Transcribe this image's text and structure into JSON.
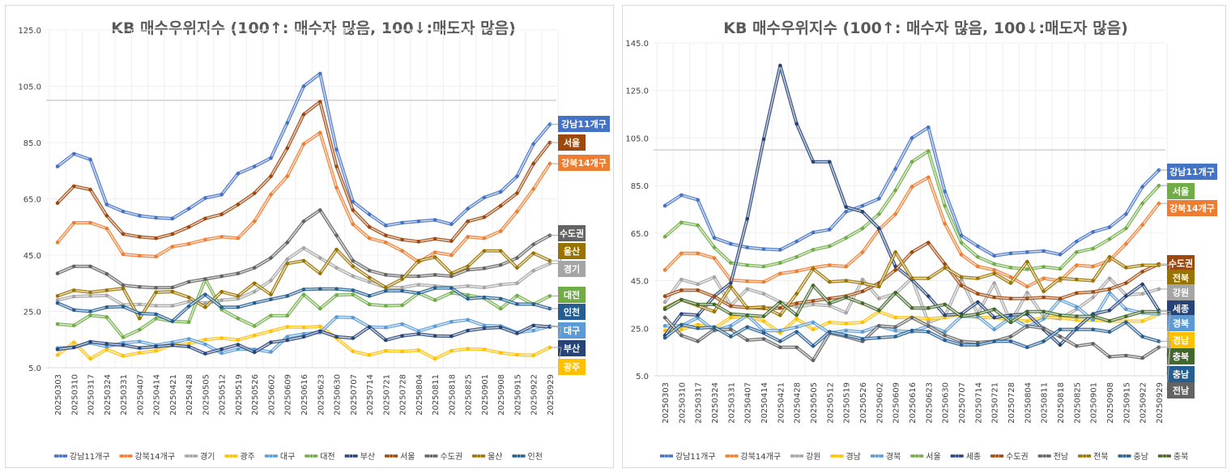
{
  "chart_data": [
    {
      "type": "line",
      "title": "KB 매수우위지수 (100↑: 매수자 많음, 100↓:매도자 많음)",
      "xlabel": "",
      "ylabel": "",
      "ylim": [
        5,
        125
      ],
      "yticks": [
        "5.0",
        "25.0",
        "45.0",
        "65.0",
        "85.0",
        "105.0",
        "125.0"
      ],
      "reference_line": 100,
      "grid": true,
      "legend_position": "bottom",
      "x": [
        "20250303",
        "20250310",
        "20250317",
        "20250324",
        "20250331",
        "20250407",
        "20250414",
        "20250421",
        "20250428",
        "20250505",
        "20250512",
        "20250519",
        "20250526",
        "20250602",
        "20250609",
        "20250616",
        "20250623",
        "20250630",
        "20250707",
        "20250714",
        "20250721",
        "20250728",
        "20250804",
        "20250811",
        "20250818",
        "20250825",
        "20250901",
        "20250908",
        "20250915",
        "20250922",
        "20250929"
      ],
      "series": [
        {
          "name": "강남11개구",
          "color": "#4472C4",
          "values": [
            76.5,
            81,
            79,
            63,
            60.5,
            59,
            58.3,
            58,
            61.5,
            65.3,
            66.5,
            74,
            76.5,
            79.5,
            92,
            105,
            109.5,
            82.5,
            64,
            59.5,
            55.5,
            56.5,
            57,
            57.5,
            56,
            61.5,
            65.5,
            67.5,
            73,
            84.5,
            91.5
          ]
        },
        {
          "name": "강북14개구",
          "color": "#ED7D31",
          "values": [
            49.5,
            56.5,
            56.5,
            54.5,
            45.3,
            44.8,
            44.5,
            48,
            49,
            50.5,
            51.5,
            51,
            57,
            66.5,
            73,
            84.5,
            88.5,
            69,
            56,
            51,
            49.5,
            46.5,
            42.5,
            46,
            45,
            51.5,
            51,
            53.5,
            60.5,
            68.5,
            77.5
          ]
        },
        {
          "name": "경기",
          "color": "#A5A5A5",
          "values": [
            29,
            30.3,
            30.5,
            30.7,
            27.3,
            27.5,
            27,
            27,
            28.5,
            28,
            29,
            29.5,
            32,
            36,
            43.5,
            47.5,
            44,
            40.5,
            37.5,
            35.5,
            33.5,
            33.5,
            34.5,
            34,
            33.5,
            34,
            33.5,
            34.5,
            35,
            39.5,
            42
          ]
        },
        {
          "name": "광주",
          "color": "#FFC000",
          "values": [
            9.5,
            14,
            8.2,
            11.5,
            9.2,
            10.3,
            11,
            13.2,
            13.5,
            15,
            15.5,
            14.9,
            16.5,
            18,
            19.5,
            19.3,
            19.7,
            15.5,
            10.8,
            9.5,
            11,
            10.8,
            11.2,
            8.2,
            11,
            11.7,
            11.5,
            10.3,
            9.6,
            9.4,
            12.2
          ]
        },
        {
          "name": "대구",
          "color": "#5B9BD5",
          "values": [
            12,
            12.3,
            13.8,
            12.5,
            13.8,
            14.3,
            13,
            14,
            15.2,
            13.3,
            10.2,
            11.6,
            11.5,
            10.6,
            16,
            17,
            17.5,
            23,
            22.8,
            19.5,
            19.3,
            20.5,
            18,
            19.7,
            21.3,
            22,
            20,
            19.8,
            17.5,
            18.2,
            19.8
          ]
        },
        {
          "name": "대전",
          "color": "#70AD47",
          "values": [
            20.5,
            20,
            23.6,
            23,
            15.8,
            18.5,
            22.5,
            21.5,
            21.2,
            36.5,
            25.7,
            22.5,
            19.8,
            23.5,
            23.5,
            31,
            26,
            30.8,
            31,
            27.5,
            27,
            27.2,
            31.5,
            29,
            31.6,
            30.8,
            29.7,
            26,
            30.6,
            27.5,
            30.5
          ]
        },
        {
          "name": "부산",
          "color": "#264478",
          "values": [
            11.5,
            12.2,
            14.2,
            13.5,
            13,
            12,
            12.5,
            13,
            12.5,
            10,
            11.6,
            13.2,
            10.5,
            14,
            14.8,
            16,
            18,
            16,
            15.5,
            19.5,
            14.8,
            16.3,
            17,
            16.3,
            16.2,
            18.2,
            19,
            19.3,
            17.2,
            20,
            19.5
          ]
        },
        {
          "name": "서울",
          "color": "#9E480E",
          "values": [
            63.5,
            69.5,
            68.3,
            59,
            52.5,
            51.5,
            51,
            52.5,
            55,
            58,
            59.5,
            63,
            67,
            73,
            83,
            95,
            99.5,
            76.5,
            61,
            55,
            52,
            50.5,
            49.8,
            50.8,
            50,
            57,
            58.5,
            62.5,
            67,
            77.5,
            85
          ]
        },
        {
          "name": "수도권",
          "color": "#636363",
          "values": [
            38.5,
            41,
            41,
            38.3,
            34.3,
            33.7,
            33.4,
            33.5,
            35.5,
            36.5,
            37.5,
            38.5,
            40.5,
            44,
            49.5,
            57,
            61,
            52,
            43,
            39.5,
            38,
            37.5,
            37.5,
            38,
            37.5,
            39.8,
            40.3,
            41.5,
            44,
            48.8,
            52
          ]
        },
        {
          "name": "울산",
          "color": "#997300",
          "values": [
            30.5,
            32.5,
            31.8,
            32.5,
            33.2,
            22.5,
            31.8,
            32,
            30,
            26.5,
            32,
            30.5,
            35,
            31,
            42,
            43,
            38.5,
            47,
            41,
            37,
            33.5,
            36.5,
            43,
            44.3,
            38.5,
            41,
            46.5,
            46.5,
            40.5,
            45.7,
            43
          ]
        },
        {
          "name": "인천",
          "color": "#255E91",
          "values": [
            28,
            25.5,
            25,
            26.5,
            26.7,
            24.3,
            24,
            21.5,
            26.8,
            31,
            26.5,
            26.5,
            28,
            29.3,
            30.5,
            32.8,
            33,
            33,
            32.5,
            30.5,
            32.3,
            32.3,
            31.5,
            33.3,
            33.3,
            29.5,
            30,
            29.5,
            27.6,
            27.6,
            26
          ]
        }
      ],
      "end_labels": [
        "강남11개구",
        "서울",
        "강북14개구",
        "수도권",
        "울산",
        "경기",
        "대전",
        "인천",
        "대구",
        "부산",
        "광주"
      ]
    },
    {
      "type": "line",
      "title": "KB 매수우위지수 (100↑: 매수자 많음, 100↓:매도자 많음)",
      "xlabel": "",
      "ylabel": "",
      "ylim": [
        5,
        145
      ],
      "yticks": [
        "5.0",
        "25.0",
        "45.0",
        "65.0",
        "85.0",
        "105.0",
        "125.0",
        "145.0"
      ],
      "reference_line": 100,
      "grid": true,
      "legend_position": "bottom",
      "x": [
        "20250303",
        "20250310",
        "20250317",
        "20250324",
        "20250331",
        "20250407",
        "20250414",
        "20250421",
        "20250428",
        "20250505",
        "20250512",
        "20250519",
        "20250526",
        "20250602",
        "20250609",
        "20250616",
        "20250623",
        "20250630",
        "20250707",
        "20250714",
        "20250721",
        "20250728",
        "20250804",
        "20250811",
        "20250818",
        "20250825",
        "20250901",
        "20250908",
        "20250915",
        "20250922",
        "20250929"
      ],
      "series": [
        {
          "name": "강남11개구",
          "color": "#4472C4",
          "values": [
            76.5,
            81,
            79,
            63,
            60.5,
            59,
            58.3,
            58,
            61.5,
            65.3,
            66.5,
            74,
            76.5,
            79.5,
            92,
            105,
            109.5,
            82.5,
            64,
            59.5,
            55.5,
            56.5,
            57,
            57.5,
            56,
            61.5,
            65.5,
            67.5,
            73,
            84.5,
            91.5
          ]
        },
        {
          "name": "강북14개구",
          "color": "#ED7D31",
          "values": [
            49.5,
            56.5,
            56.5,
            54.5,
            45.3,
            44.8,
            44.5,
            48,
            49,
            50.5,
            51.5,
            51,
            57,
            66.5,
            73,
            84.5,
            88.5,
            69,
            56,
            51,
            49.5,
            46.5,
            42.5,
            46,
            45,
            51.5,
            51,
            53.5,
            60.5,
            68.5,
            77.5
          ]
        },
        {
          "name": "강원",
          "color": "#A5A5A5",
          "values": [
            36,
            45.5,
            43.5,
            46.5,
            34.5,
            41.5,
            39.5,
            36,
            34,
            35,
            34.5,
            31.5,
            45.5,
            37.5,
            39.5,
            46,
            27.5,
            30,
            45.5,
            31,
            44,
            27.5,
            40,
            30,
            29,
            33,
            38,
            46,
            39,
            39.5,
            41.5
          ]
        },
        {
          "name": "경남",
          "color": "#FFC000",
          "values": [
            24,
            24.5,
            26.5,
            25,
            29.5,
            30,
            28,
            23,
            29,
            24.5,
            27.5,
            27,
            27.5,
            32,
            29.5,
            29.5,
            29,
            29.5,
            31,
            29.5,
            29.5,
            28.5,
            28,
            29.5,
            29.5,
            28.5,
            28.5,
            28,
            28,
            28,
            31
          ]
        },
        {
          "name": "경북",
          "color": "#5B9BD5",
          "values": [
            26,
            26,
            29.5,
            24,
            26,
            30.5,
            24,
            24,
            25.5,
            27.5,
            23,
            24,
            23.5,
            26,
            24,
            23.5,
            26,
            23.5,
            30,
            30,
            24.5,
            29.5,
            25.5,
            29,
            37,
            34,
            28.5,
            40,
            33,
            31.5,
            31
          ]
        },
        {
          "name": "서울",
          "color": "#70AD47",
          "values": [
            63.5,
            69.5,
            68.3,
            59,
            52.5,
            51.5,
            51,
            52.5,
            55,
            58,
            59.5,
            63,
            67,
            73,
            83,
            95,
            99.5,
            76.5,
            61,
            55,
            52,
            50.5,
            49.8,
            50.8,
            50,
            57,
            58.5,
            62.5,
            67,
            77.5,
            85
          ]
        },
        {
          "name": "세종",
          "color": "#264478",
          "values": [
            22,
            31,
            30.5,
            38.5,
            44,
            71,
            104.5,
            135.5,
            111,
            95,
            95,
            76,
            74,
            67,
            51,
            45.5,
            38.5,
            30.5,
            31,
            36,
            29.5,
            30.5,
            31,
            24.5,
            18,
            25,
            31,
            32.5,
            38.5,
            43.5,
            32.5
          ]
        },
        {
          "name": "수도권",
          "color": "#9E480E",
          "values": [
            38.5,
            41,
            41,
            38.3,
            34.3,
            33.7,
            33.4,
            33.5,
            35.5,
            36.5,
            37.5,
            38.5,
            40.5,
            44,
            49.5,
            57,
            61,
            52,
            43,
            39.5,
            38,
            37.5,
            37.5,
            38,
            37.5,
            39.8,
            40.3,
            41.5,
            44,
            48.8,
            52
          ]
        },
        {
          "name": "전남",
          "color": "#636363",
          "values": [
            29.5,
            22,
            19.5,
            24.5,
            24.5,
            20,
            20.5,
            17,
            17,
            11.5,
            23,
            21.5,
            19.5,
            26,
            25.5,
            29.5,
            26,
            22,
            19.5,
            19,
            19.5,
            21.5,
            26,
            25,
            21.5,
            17.5,
            18.5,
            13,
            13.5,
            12.5,
            17
          ]
        },
        {
          "name": "전북",
          "color": "#997300",
          "values": [
            33.5,
            37,
            34.5,
            32,
            42.5,
            33.5,
            34,
            30.5,
            39.5,
            50,
            44.5,
            45,
            44,
            42.5,
            57,
            46,
            46,
            50.5,
            46.5,
            46,
            48,
            44,
            53,
            40.5,
            46,
            45.5,
            45,
            55,
            50.5,
            51.5,
            51.5
          ]
        },
        {
          "name": "충남",
          "color": "#255E91",
          "values": [
            21,
            26.5,
            25,
            25.5,
            21.5,
            25.5,
            23,
            19.5,
            23.5,
            17.5,
            23.5,
            22,
            20.5,
            21,
            21.5,
            24,
            23.5,
            20,
            18,
            18,
            19.5,
            19.5,
            17,
            19.5,
            24.5,
            24.5,
            24.5,
            23.5,
            27.5,
            21.5,
            19.5
          ]
        },
        {
          "name": "충북",
          "color": "#43682B",
          "values": [
            33,
            37,
            35,
            35,
            31,
            30.5,
            30,
            36,
            30.5,
            43,
            35.5,
            38,
            35.5,
            32.5,
            40,
            33.5,
            33.5,
            35,
            30,
            31,
            33,
            27.5,
            32,
            32,
            30.5,
            30,
            30,
            28,
            30,
            32,
            32
          ]
        }
      ],
      "end_labels": [
        "강남11개구",
        "서울",
        "강북14개구",
        "수도권",
        "전북",
        "강원",
        "세종",
        "경북",
        "경남",
        "충북",
        "충남",
        "전남"
      ]
    }
  ],
  "tag_colors": {
    "강남11개구": "#4472C4",
    "서울_left": "#9E480E",
    "서울_right": "#70AD47",
    "강북14개구": "#ED7D31",
    "수도권_left": "#636363",
    "수도권_right": "#9E480E",
    "울산": "#997300",
    "경기": "#A5A5A5",
    "대전": "#70AD47",
    "인천": "#255E91",
    "대구": "#5B9BD5",
    "부산": "#264478",
    "광주": "#FFC000",
    "전북": "#997300",
    "강원": "#A5A5A5",
    "세종": "#264478",
    "경북": "#5B9BD5",
    "경남": "#FFC000",
    "충북": "#43682B",
    "충남": "#255E91",
    "전남": "#636363"
  }
}
